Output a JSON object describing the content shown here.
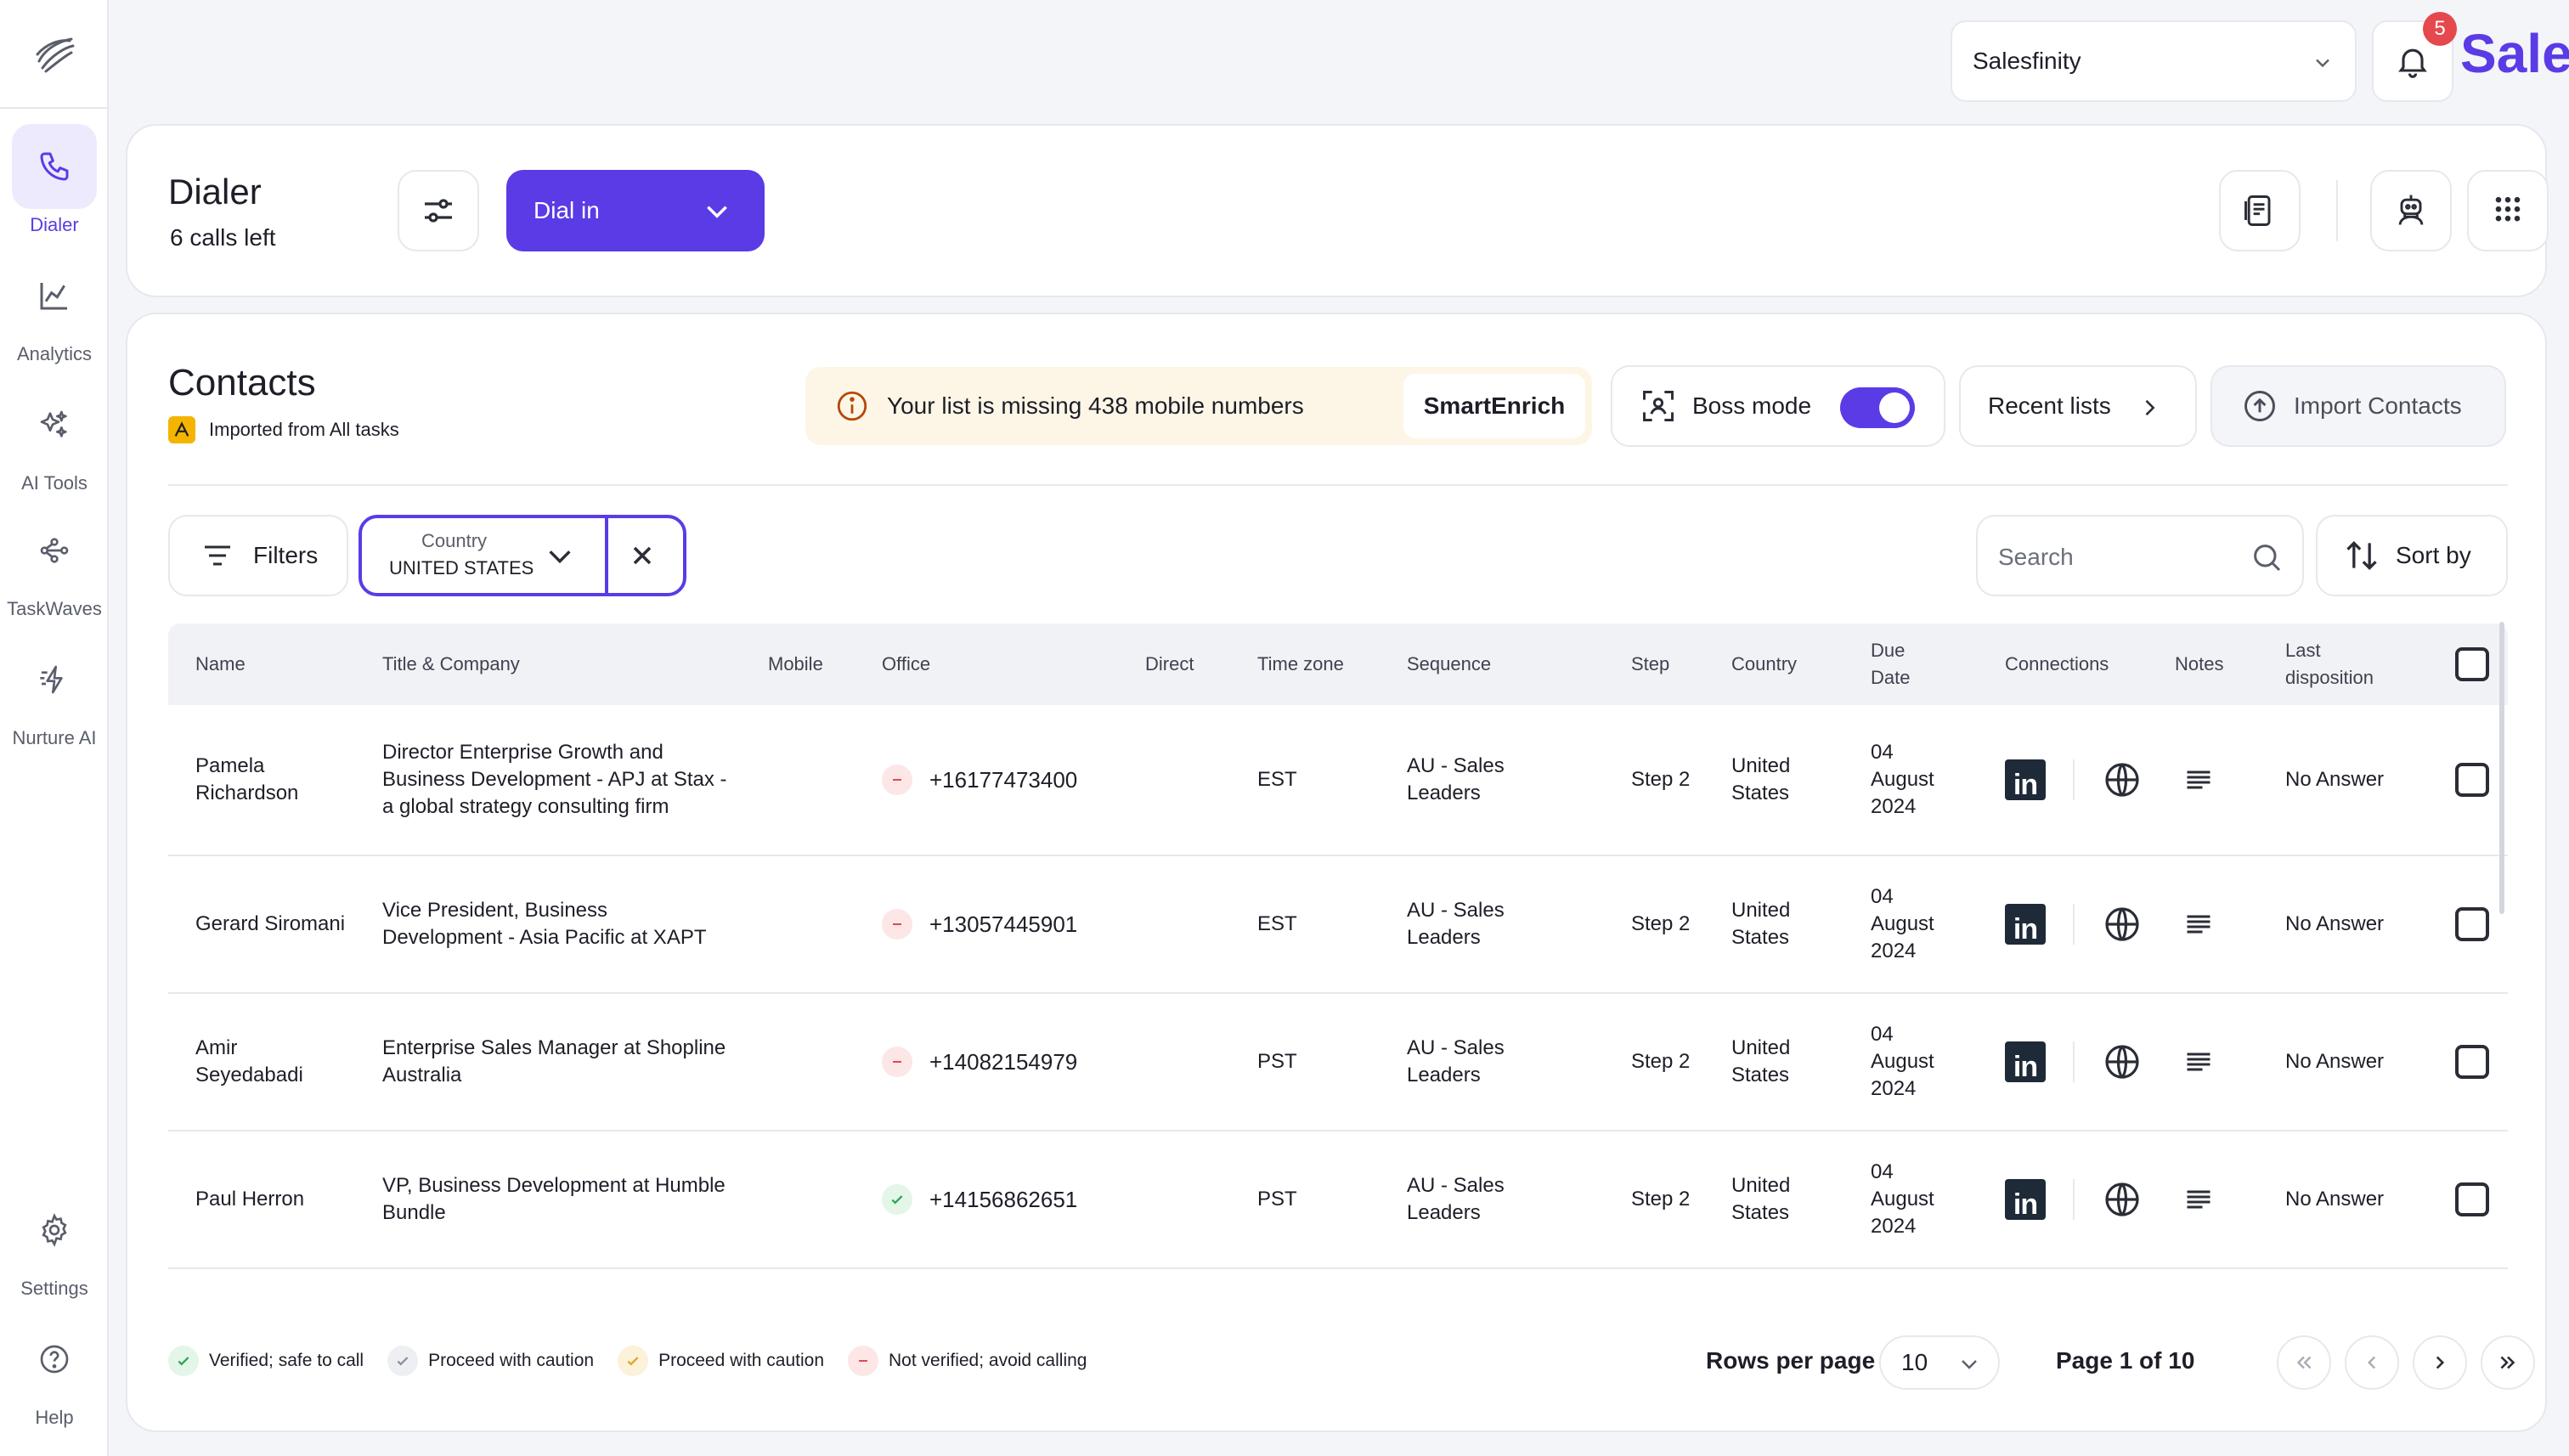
{
  "nav": {
    "items": [
      {
        "label": "Dialer",
        "icon": "phone-icon",
        "active": true
      },
      {
        "label": "Analytics",
        "icon": "chart-line-icon"
      },
      {
        "label": "AI Tools",
        "icon": "sparkles-icon"
      },
      {
        "label": "TaskWaves",
        "icon": "workflow-icon"
      },
      {
        "label": "Nurture AI",
        "icon": "lightning-icon"
      }
    ],
    "bottom": [
      {
        "label": "Settings",
        "icon": "gear-icon"
      },
      {
        "label": "Help",
        "icon": "help-icon"
      }
    ]
  },
  "topbar": {
    "org_selected": "Salesfinity",
    "notification_count": "5",
    "brand_partial": "Sale"
  },
  "dialer": {
    "title": "Dialer",
    "calls_left": "6 calls left",
    "dial_mode": "Dial in"
  },
  "contacts": {
    "title": "Contacts",
    "imported_from": "Imported from All tasks",
    "warning": "Your list is missing 438 mobile numbers",
    "smart_enrich": "SmartEnrich",
    "boss_mode_label": "Boss mode",
    "boss_mode_on": true,
    "recent_lists": "Recent lists",
    "import_contacts": "Import Contacts",
    "filters_label": "Filters",
    "country_filter": {
      "label": "Country",
      "value": "UNITED STATES"
    },
    "search_placeholder": "Search",
    "sort_label": "Sort by"
  },
  "table": {
    "headers": {
      "name": "Name",
      "title_company": "Title & Company",
      "mobile": "Mobile",
      "office": "Office",
      "direct": "Direct",
      "timezone": "Time zone",
      "sequence": "Sequence",
      "step": "Step",
      "country": "Country",
      "due_date": "Due Date",
      "connections": "Connections",
      "notes": "Notes",
      "last_disposition": "Last disposition"
    },
    "rows": [
      {
        "name": "Pamela Richardson",
        "title_company": "Director Enterprise Growth and Business Development - APJ at Stax - a global strategy consulting firm",
        "mobile": "",
        "office": "+16177473400",
        "office_status": "not-verified",
        "direct": "",
        "timezone": "EST",
        "sequence": "AU - Sales Leaders",
        "step": "Step 2",
        "country": "United States",
        "due_date": "04 August 2024",
        "last_disposition": "No Answer"
      },
      {
        "name": "Gerard Siromani",
        "title_company": "Vice President, Business Development - Asia Pacific at XAPT",
        "mobile": "",
        "office": "+13057445901",
        "office_status": "not-verified",
        "direct": "",
        "timezone": "EST",
        "sequence": "AU - Sales Leaders",
        "step": "Step 2",
        "country": "United States",
        "due_date": "04 August 2024",
        "last_disposition": "No Answer"
      },
      {
        "name": "Amir Seyedabadi",
        "title_company": "Enterprise Sales Manager at Shopline Australia",
        "mobile": "",
        "office": "+14082154979",
        "office_status": "not-verified",
        "direct": "",
        "timezone": "PST",
        "sequence": "AU - Sales Leaders",
        "step": "Step 2",
        "country": "United States",
        "due_date": "04 August 2024",
        "last_disposition": "No Answer"
      },
      {
        "name": "Paul Herron",
        "title_company": "VP, Business Development at Humble Bundle",
        "mobile": "",
        "office": "+14156862651",
        "office_status": "verified",
        "direct": "",
        "timezone": "PST",
        "sequence": "AU - Sales Leaders",
        "step": "Step 2",
        "country": "United States",
        "due_date": "04 August 2024",
        "last_disposition": "No Answer"
      }
    ]
  },
  "legend": [
    {
      "label": "Verified; safe to call",
      "kind": "verified",
      "color": "#2FA352"
    },
    {
      "label": "Proceed with caution",
      "kind": "caution-gray",
      "color": "#8A8E99"
    },
    {
      "label": "Proceed with caution",
      "kind": "caution-yellow",
      "color": "#E0A526"
    },
    {
      "label": "Not verified; avoid calling",
      "kind": "not-verified",
      "color": "#E5484D"
    }
  ],
  "pagination": {
    "rows_per_page_label": "Rows per page",
    "rows_per_page": "10",
    "page_info": "Page 1 of 10"
  },
  "colors": {
    "accent": "#5B3BE6",
    "badge": "#E5484D",
    "warning_bg": "#FDF6E7"
  }
}
